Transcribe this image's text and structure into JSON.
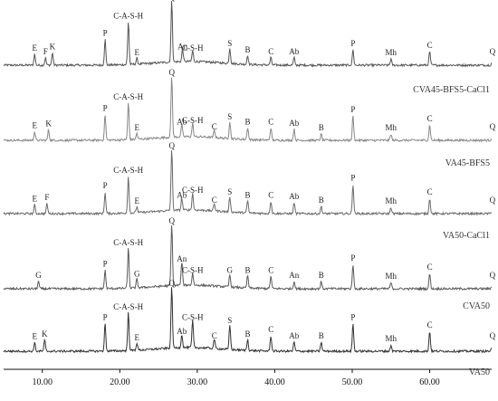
{
  "chart_data": {
    "type": "line",
    "title": "",
    "xlabel": "",
    "ylabel": "",
    "xlim": [
      5,
      68
    ],
    "x_ticks": [
      10,
      20,
      30,
      40,
      50,
      60
    ],
    "x_tick_labels": [
      "10.00",
      "20.00",
      "30.00",
      "40.00",
      "50.00",
      "60.00"
    ],
    "grid": false,
    "series": [
      {
        "name": "CVA45-BFS5-CaCl1",
        "color": "#555555",
        "peaks": [
          {
            "label": "E",
            "x": 9.0,
            "h": 0.18
          },
          {
            "label": "F",
            "x": 10.4,
            "h": 0.12
          },
          {
            "label": "K",
            "x": 11.3,
            "h": 0.2
          },
          {
            "label": "P",
            "x": 18.1,
            "h": 0.42
          },
          {
            "label": "C-A-S-H",
            "x": 21.1,
            "h": 0.7
          },
          {
            "label": "E",
            "x": 22.2,
            "h": 0.1
          },
          {
            "label": "Q",
            "x": 26.7,
            "h": 1.0
          },
          {
            "label": "An",
            "x": 28.1,
            "h": 0.2
          },
          {
            "label": "C-S-H",
            "x": 29.4,
            "h": 0.18
          },
          {
            "label": "S",
            "x": 34.2,
            "h": 0.25
          },
          {
            "label": "B",
            "x": 36.5,
            "h": 0.15
          },
          {
            "label": "C",
            "x": 39.5,
            "h": 0.12
          },
          {
            "label": "Ab",
            "x": 42.5,
            "h": 0.12
          },
          {
            "label": "P",
            "x": 50.1,
            "h": 0.25
          },
          {
            "label": "Mh",
            "x": 55.0,
            "h": 0.1
          },
          {
            "label": "C",
            "x": 60.0,
            "h": 0.22
          },
          {
            "label": "Q",
            "x": 68.1,
            "h": 0.12
          }
        ]
      },
      {
        "name": "VA45-BFS5",
        "color": "#888888",
        "peaks": [
          {
            "label": "E",
            "x": 9.0,
            "h": 0.14
          },
          {
            "label": "K",
            "x": 10.8,
            "h": 0.17
          },
          {
            "label": "P",
            "x": 18.1,
            "h": 0.42
          },
          {
            "label": "C-A-S-H",
            "x": 21.1,
            "h": 0.6
          },
          {
            "label": "E",
            "x": 22.2,
            "h": 0.1
          },
          {
            "label": "Q",
            "x": 26.7,
            "h": 1.0
          },
          {
            "label": "Ab",
            "x": 28.0,
            "h": 0.2
          },
          {
            "label": "C-S-H",
            "x": 29.4,
            "h": 0.22
          },
          {
            "label": "C",
            "x": 32.2,
            "h": 0.12
          },
          {
            "label": "S",
            "x": 34.2,
            "h": 0.28
          },
          {
            "label": "B",
            "x": 36.5,
            "h": 0.2
          },
          {
            "label": "C",
            "x": 39.5,
            "h": 0.2
          },
          {
            "label": "Ab",
            "x": 42.5,
            "h": 0.18
          },
          {
            "label": "B",
            "x": 46.0,
            "h": 0.1
          },
          {
            "label": "P",
            "x": 50.1,
            "h": 0.4
          },
          {
            "label": "Mh",
            "x": 55.0,
            "h": 0.1
          },
          {
            "label": "C",
            "x": 60.0,
            "h": 0.25
          },
          {
            "label": "Q",
            "x": 68.1,
            "h": 0.12
          }
        ]
      },
      {
        "name": "VA50-CaCl1",
        "color": "#6a6a6a",
        "peaks": [
          {
            "label": "E",
            "x": 9.0,
            "h": 0.14
          },
          {
            "label": "F",
            "x": 10.6,
            "h": 0.16
          },
          {
            "label": "P",
            "x": 18.1,
            "h": 0.35
          },
          {
            "label": "C-A-S-H",
            "x": 21.1,
            "h": 0.6
          },
          {
            "label": "E",
            "x": 22.2,
            "h": 0.1
          },
          {
            "label": "Q",
            "x": 26.7,
            "h": 1.0
          },
          {
            "label": "Ab",
            "x": 28.0,
            "h": 0.2
          },
          {
            "label": "C-S-H",
            "x": 29.4,
            "h": 0.28
          },
          {
            "label": "C",
            "x": 32.2,
            "h": 0.12
          },
          {
            "label": "S",
            "x": 34.2,
            "h": 0.25
          },
          {
            "label": "B",
            "x": 36.5,
            "h": 0.2
          },
          {
            "label": "C",
            "x": 39.5,
            "h": 0.2
          },
          {
            "label": "Ab",
            "x": 42.5,
            "h": 0.18
          },
          {
            "label": "B",
            "x": 46.0,
            "h": 0.12
          },
          {
            "label": "P",
            "x": 50.1,
            "h": 0.48
          },
          {
            "label": "Mh",
            "x": 55.0,
            "h": 0.1
          },
          {
            "label": "C",
            "x": 60.0,
            "h": 0.25
          },
          {
            "label": "Q",
            "x": 68.1,
            "h": 0.12
          }
        ]
      },
      {
        "name": "CVA50",
        "color": "#5a5a5a",
        "peaks": [
          {
            "label": "G",
            "x": 9.5,
            "h": 0.12
          },
          {
            "label": "P",
            "x": 18.1,
            "h": 0.3
          },
          {
            "label": "C-A-S-H",
            "x": 21.1,
            "h": 0.65
          },
          {
            "label": "G",
            "x": 22.2,
            "h": 0.14
          },
          {
            "label": "Q",
            "x": 26.7,
            "h": 1.0
          },
          {
            "label": "An",
            "x": 28.0,
            "h": 0.38
          },
          {
            "label": "C-S-H",
            "x": 29.4,
            "h": 0.2
          },
          {
            "label": "G",
            "x": 34.2,
            "h": 0.2
          },
          {
            "label": "B",
            "x": 36.5,
            "h": 0.2
          },
          {
            "label": "C",
            "x": 39.5,
            "h": 0.2
          },
          {
            "label": "An",
            "x": 42.5,
            "h": 0.12
          },
          {
            "label": "B",
            "x": 46.0,
            "h": 0.12
          },
          {
            "label": "P",
            "x": 50.1,
            "h": 0.4
          },
          {
            "label": "Mh",
            "x": 55.0,
            "h": 0.1
          },
          {
            "label": "C",
            "x": 60.0,
            "h": 0.25
          },
          {
            "label": "Q",
            "x": 68.1,
            "h": 0.12
          }
        ]
      },
      {
        "name": "VA50",
        "color": "#333333",
        "peaks": [
          {
            "label": "E",
            "x": 9.0,
            "h": 0.14
          },
          {
            "label": "K",
            "x": 10.3,
            "h": 0.18
          },
          {
            "label": "P",
            "x": 18.1,
            "h": 0.45
          },
          {
            "label": "C-A-S-H",
            "x": 21.1,
            "h": 0.62
          },
          {
            "label": "E",
            "x": 22.2,
            "h": 0.12
          },
          {
            "label": "Q",
            "x": 26.7,
            "h": 1.0
          },
          {
            "label": "Ab",
            "x": 28.0,
            "h": 0.22
          },
          {
            "label": "C-S-H",
            "x": 29.4,
            "h": 0.45
          },
          {
            "label": "C",
            "x": 32.2,
            "h": 0.15
          },
          {
            "label": "S",
            "x": 34.2,
            "h": 0.4
          },
          {
            "label": "B",
            "x": 36.5,
            "h": 0.18
          },
          {
            "label": "C",
            "x": 39.5,
            "h": 0.25
          },
          {
            "label": "Ab",
            "x": 42.5,
            "h": 0.15
          },
          {
            "label": "B",
            "x": 46.0,
            "h": 0.15
          },
          {
            "label": "P",
            "x": 50.1,
            "h": 0.45
          },
          {
            "label": "Mh",
            "x": 55.0,
            "h": 0.1
          },
          {
            "label": "C",
            "x": 60.0,
            "h": 0.32
          },
          {
            "label": "Q",
            "x": 68.1,
            "h": 0.15
          }
        ]
      }
    ]
  }
}
